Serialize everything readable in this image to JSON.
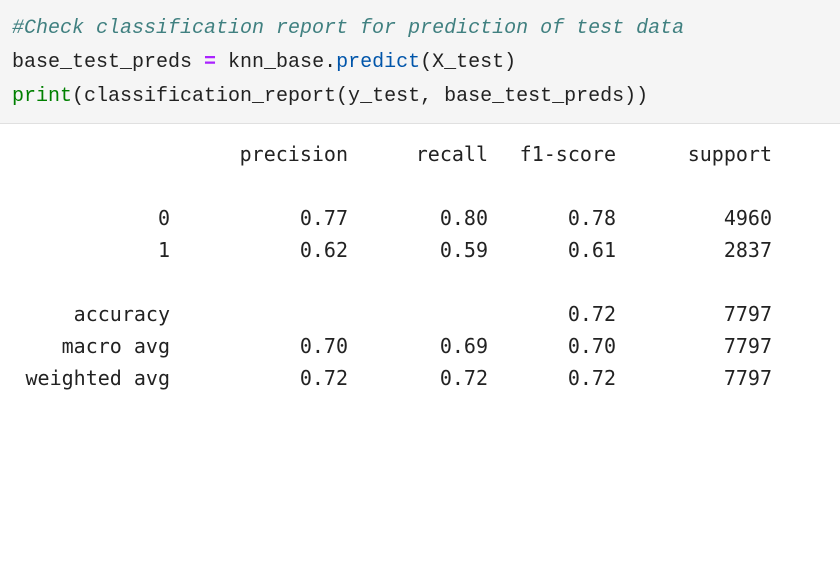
{
  "code_cell": {
    "comment": "#Check classification report for prediction of test data",
    "line2": {
      "lhs": "base_test_preds ",
      "op": "=",
      "rhs_obj": " knn_base.",
      "rhs_method": "predict",
      "rhs_args": "(X_test)"
    },
    "line3": {
      "builtin": "print",
      "rest": "(classification_report(y_test, base_test_preds))"
    }
  },
  "report": {
    "headers": [
      "precision",
      "recall",
      "f1-score",
      "support"
    ],
    "rows": [
      {
        "label": "0",
        "precision": "0.77",
        "recall": "0.80",
        "f1": "0.78",
        "support": "4960"
      },
      {
        "label": "1",
        "precision": "0.62",
        "recall": "0.59",
        "f1": "0.61",
        "support": "2837"
      },
      {
        "label": "accuracy",
        "precision": "",
        "recall": "",
        "f1": "0.72",
        "support": "7797"
      },
      {
        "label": "macro avg",
        "precision": "0.70",
        "recall": "0.69",
        "f1": "0.70",
        "support": "7797"
      },
      {
        "label": "weighted avg",
        "precision": "0.72",
        "recall": "0.72",
        "f1": "0.72",
        "support": "7797"
      }
    ]
  },
  "colors": {
    "comment": "#408080",
    "operator": "#aa22ff",
    "builtin": "#008000",
    "input_background": "#f5f5f5"
  }
}
